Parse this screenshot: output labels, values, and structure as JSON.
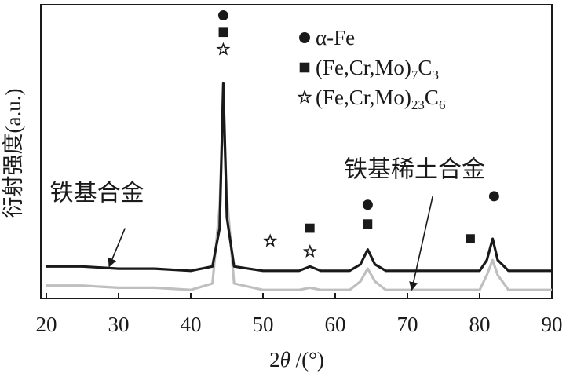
{
  "chart_data": {
    "type": "line",
    "title": "",
    "xlabel": "2θ /(°)",
    "xlabel_main": "2",
    "xlabel_theta": "θ",
    "xlabel_unit": " /(°)",
    "ylabel": "衍射强度(a.u.)",
    "xlim": [
      20,
      90
    ],
    "xticks": [
      20,
      30,
      40,
      50,
      60,
      70,
      80,
      90
    ],
    "yticks_shown": false,
    "series": [
      {
        "name": "铁基合金",
        "color": "#1a1a1a",
        "points": [
          [
            20,
            0.12
          ],
          [
            25,
            0.12
          ],
          [
            30,
            0.11
          ],
          [
            35,
            0.11
          ],
          [
            40,
            0.1
          ],
          [
            43,
            0.12
          ],
          [
            44,
            0.3
          ],
          [
            44.5,
            0.98
          ],
          [
            45,
            0.35
          ],
          [
            46,
            0.12
          ],
          [
            50,
            0.1
          ],
          [
            55,
            0.1
          ],
          [
            56.5,
            0.12
          ],
          [
            58,
            0.1
          ],
          [
            62,
            0.1
          ],
          [
            63.5,
            0.13
          ],
          [
            64.5,
            0.2
          ],
          [
            65.5,
            0.13
          ],
          [
            67,
            0.1
          ],
          [
            75,
            0.1
          ],
          [
            80,
            0.1
          ],
          [
            81,
            0.15
          ],
          [
            81.8,
            0.25
          ],
          [
            82.5,
            0.15
          ],
          [
            84,
            0.1
          ],
          [
            90,
            0.1
          ]
        ]
      },
      {
        "name": "铁基稀土合金",
        "color": "#bfbfbf",
        "points": [
          [
            20,
            0.03
          ],
          [
            25,
            0.03
          ],
          [
            30,
            0.02
          ],
          [
            35,
            0.02
          ],
          [
            40,
            0.01
          ],
          [
            43,
            0.04
          ],
          [
            44,
            0.4
          ],
          [
            44.5,
            0.86
          ],
          [
            45,
            0.45
          ],
          [
            46,
            0.04
          ],
          [
            50,
            0.01
          ],
          [
            55,
            0.01
          ],
          [
            56.5,
            0.02
          ],
          [
            58,
            0.01
          ],
          [
            62,
            0.01
          ],
          [
            63.5,
            0.05
          ],
          [
            64.5,
            0.11
          ],
          [
            65.5,
            0.05
          ],
          [
            67,
            0.01
          ],
          [
            75,
            0.01
          ],
          [
            80,
            0.01
          ],
          [
            81,
            0.08
          ],
          [
            81.8,
            0.15
          ],
          [
            82.5,
            0.08
          ],
          [
            84,
            0.01
          ],
          [
            90,
            0.01
          ]
        ]
      }
    ],
    "legend": {
      "placement": "top-right",
      "entries": [
        {
          "marker": "circle",
          "phase": "α-Fe"
        },
        {
          "marker": "square",
          "phase": "(Fe,Cr,Mo)7C3",
          "pre": "(Fe,Cr,Mo)",
          "sub1": "7",
          "mid": "C",
          "sub2": "3"
        },
        {
          "marker": "star",
          "phase": "(Fe,Cr,Mo)23C6",
          "pre": "(Fe,Cr,Mo)",
          "sub1": "23",
          "mid": "C",
          "sub2": "6"
        }
      ]
    },
    "peak_markers": [
      {
        "x": 44.5,
        "y": 1.3,
        "marker": "circle"
      },
      {
        "x": 44.5,
        "y": 1.22,
        "marker": "square"
      },
      {
        "x": 44.5,
        "y": 1.14,
        "marker": "star"
      },
      {
        "x": 51.0,
        "y": 0.24,
        "marker": "star"
      },
      {
        "x": 56.5,
        "y": 0.3,
        "marker": "square"
      },
      {
        "x": 56.5,
        "y": 0.19,
        "marker": "star"
      },
      {
        "x": 64.5,
        "y": 0.41,
        "marker": "circle"
      },
      {
        "x": 64.5,
        "y": 0.32,
        "marker": "square"
      },
      {
        "x": 78.7,
        "y": 0.25,
        "marker": "square"
      },
      {
        "x": 82.0,
        "y": 0.45,
        "marker": "circle"
      }
    ],
    "annotations": [
      {
        "text": "铁基合金",
        "text_x": 20.5,
        "text_y": 0.43,
        "arrow_from": [
          30.9,
          0.3
        ],
        "arrow_to": [
          28.7,
          0.12
        ]
      },
      {
        "text": "铁基稀土合金",
        "text_x": 61.2,
        "text_y": 0.54,
        "arrow_from": [
          73.5,
          0.45
        ],
        "arrow_to": [
          70.6,
          0.01
        ]
      }
    ]
  }
}
